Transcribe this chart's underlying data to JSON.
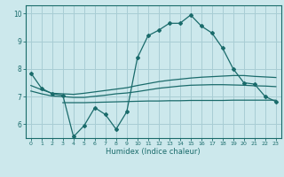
{
  "background_color": "#cce8ec",
  "grid_color": "#a8cdd4",
  "line_color": "#1a6b6b",
  "xlabel": "Humidex (Indice chaleur)",
  "xlim": [
    -0.5,
    23.5
  ],
  "ylim": [
    5.5,
    10.3
  ],
  "yticks": [
    6,
    7,
    8,
    9,
    10
  ],
  "xticks": [
    0,
    1,
    2,
    3,
    4,
    5,
    6,
    7,
    8,
    9,
    10,
    11,
    12,
    13,
    14,
    15,
    16,
    17,
    18,
    19,
    20,
    21,
    22,
    23
  ],
  "main_x": [
    0,
    1,
    2,
    3,
    4,
    5,
    6,
    7,
    8,
    9,
    10,
    11,
    12,
    13,
    14,
    15,
    16,
    17,
    18,
    19,
    20,
    21,
    22,
    23
  ],
  "main_y": [
    7.85,
    7.3,
    7.1,
    7.05,
    5.55,
    5.95,
    6.6,
    6.35,
    5.82,
    6.45,
    8.4,
    9.2,
    9.4,
    9.65,
    9.65,
    9.95,
    9.55,
    9.3,
    8.75,
    8.0,
    7.5,
    7.45,
    7.0,
    6.82
  ],
  "line2_x": [
    0,
    1,
    2,
    3,
    4,
    5,
    6,
    7,
    8,
    9,
    10,
    11,
    12,
    13,
    14,
    15,
    16,
    17,
    18,
    19,
    20,
    21,
    22,
    23
  ],
  "line2_y": [
    7.4,
    7.25,
    7.12,
    7.1,
    7.08,
    7.12,
    7.17,
    7.22,
    7.27,
    7.32,
    7.4,
    7.47,
    7.54,
    7.59,
    7.63,
    7.67,
    7.7,
    7.72,
    7.74,
    7.76,
    7.76,
    7.73,
    7.71,
    7.69
  ],
  "line3_x": [
    0,
    1,
    2,
    3,
    4,
    5,
    6,
    7,
    8,
    9,
    10,
    11,
    12,
    13,
    14,
    15,
    16,
    17,
    18,
    19,
    20,
    21,
    22,
    23
  ],
  "line3_y": [
    7.2,
    7.1,
    7.02,
    7.0,
    6.97,
    6.97,
    7.01,
    7.05,
    7.1,
    7.13,
    7.18,
    7.24,
    7.3,
    7.34,
    7.38,
    7.41,
    7.42,
    7.43,
    7.43,
    7.42,
    7.41,
    7.39,
    7.38,
    7.36
  ],
  "line4_x": [
    3,
    4,
    5,
    6,
    7,
    8,
    9,
    10,
    11,
    12,
    13,
    14,
    15,
    16,
    17,
    18,
    19,
    20,
    21,
    22,
    23
  ],
  "line4_y": [
    6.78,
    6.78,
    6.78,
    6.79,
    6.8,
    6.81,
    6.82,
    6.83,
    6.84,
    6.84,
    6.85,
    6.85,
    6.86,
    6.86,
    6.86,
    6.86,
    6.87,
    6.87,
    6.87,
    6.87,
    6.87
  ]
}
